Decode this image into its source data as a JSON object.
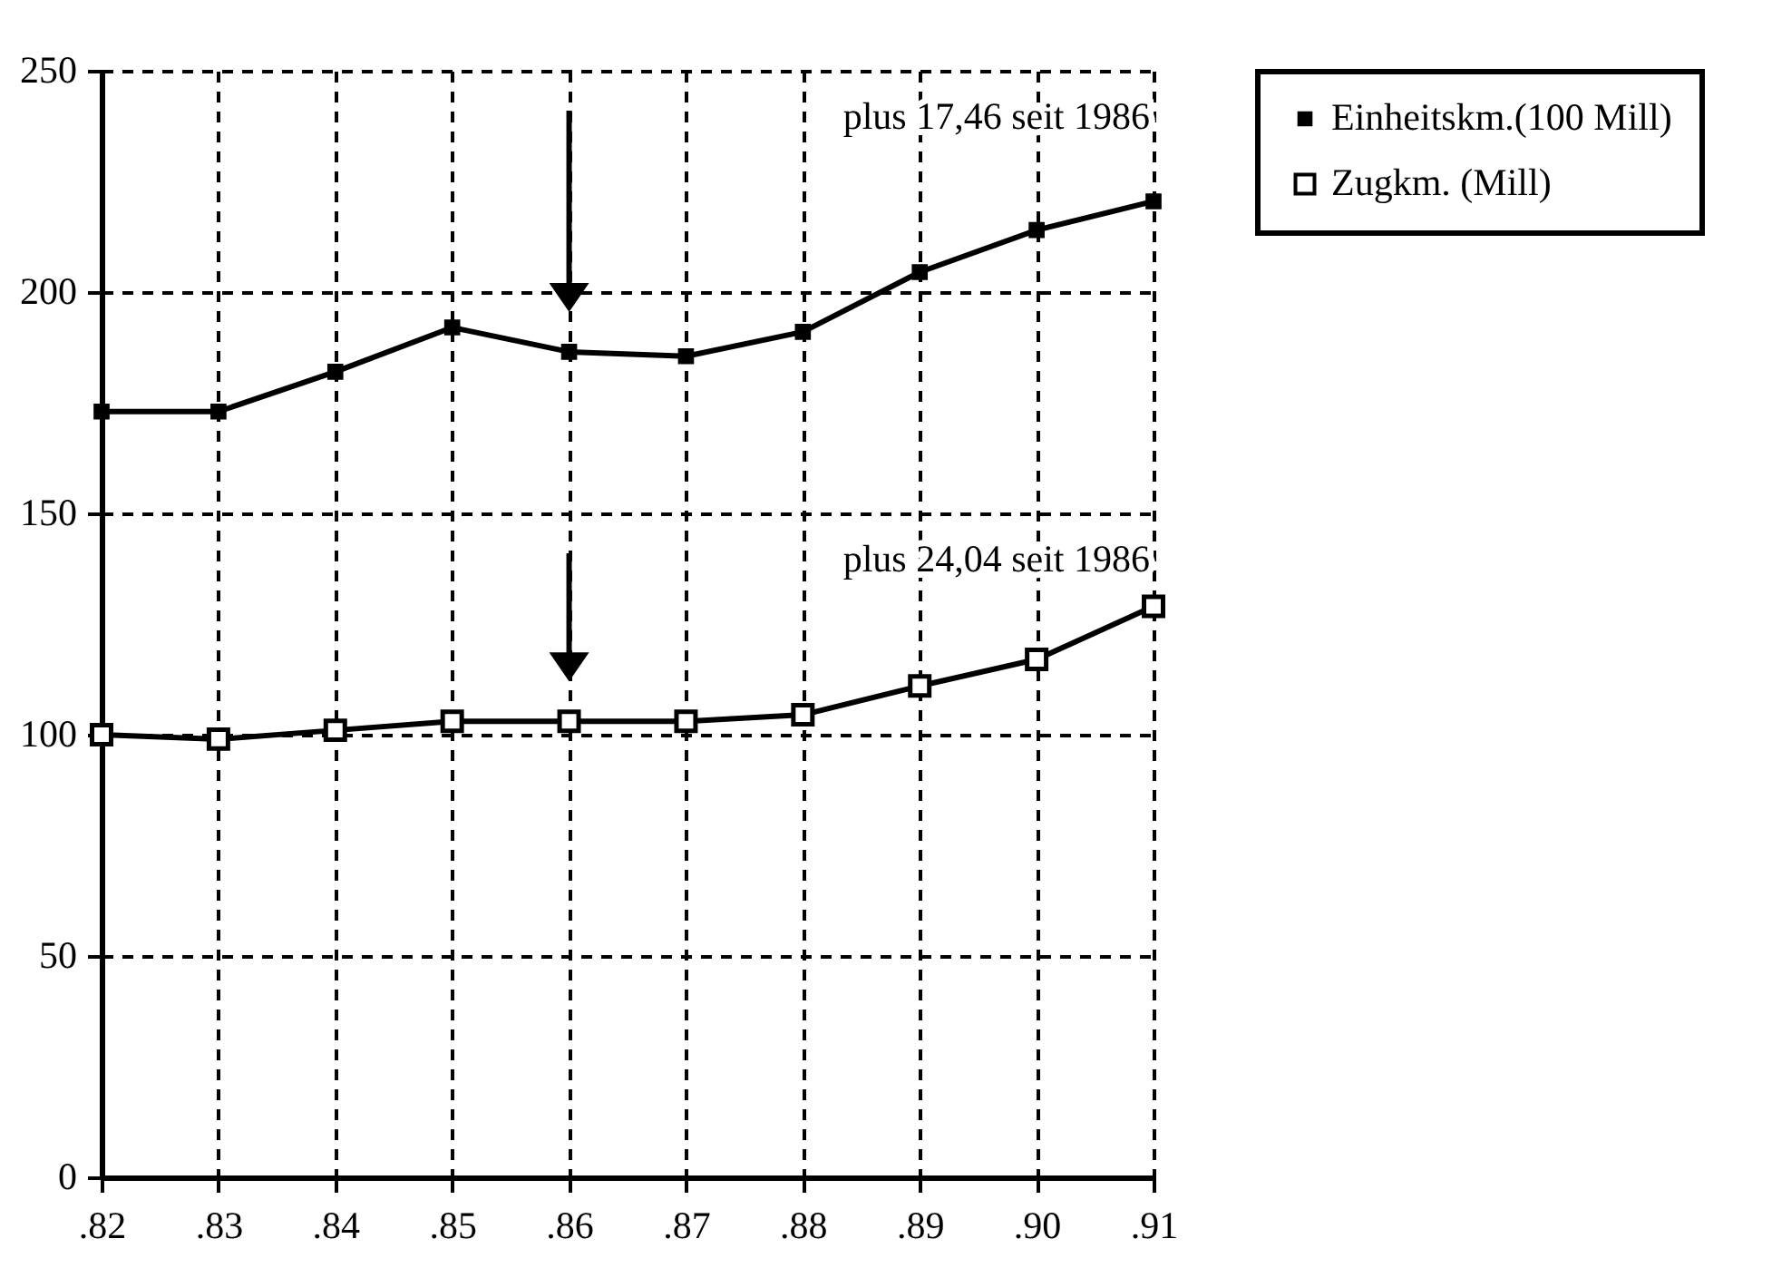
{
  "chart_data": {
    "type": "line",
    "categories": [
      ".82",
      ".83",
      ".84",
      ".85",
      ".86",
      ".87",
      ".88",
      ".89",
      ".90",
      ".91"
    ],
    "series": [
      {
        "name": "Einheitskm.(100 Mill)",
        "color": "#000000",
        "marker": "square",
        "values": [
          173,
          173,
          182,
          192,
          186.5,
          185.5,
          191,
          204.5,
          214,
          220.5
        ]
      },
      {
        "name": "Zugkm. (Mill)",
        "color": "#000000",
        "marker": "square",
        "values": [
          100,
          99,
          101,
          103,
          103,
          103,
          104.5,
          111,
          117,
          129
        ]
      }
    ],
    "ylim": [
      0,
      250
    ],
    "yticks": [
      0,
      50,
      100,
      150,
      200,
      250
    ],
    "grid": true,
    "legend": "right",
    "line_style": "solid",
    "annotations": [
      "plus 17,46 seit 1986",
      "plus 24,04 seit 1986"
    ]
  }
}
